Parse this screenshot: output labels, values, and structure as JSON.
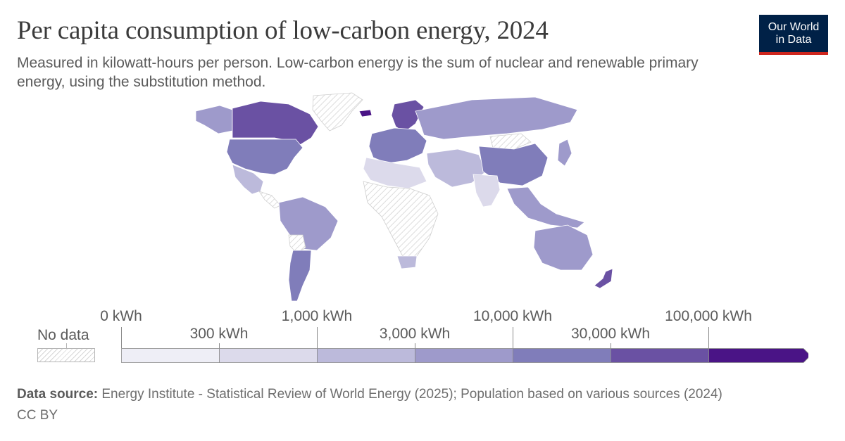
{
  "title": "Per capita consumption of low-carbon energy, 2024",
  "subtitle": "Measured in kilowatt-hours per person. Low-carbon energy is the sum of nuclear and renewable primary energy, using the substitution method.",
  "logo": {
    "line1": "Our World",
    "line2": "in Data",
    "bg_color": "#002147",
    "accent_color": "#ce261e"
  },
  "legend": {
    "no_data_label": "No data",
    "bins": [
      {
        "label": "0 kWh",
        "color": "#eeeef6"
      },
      {
        "label": "300 kWh",
        "color": "#dcdaeb"
      },
      {
        "label": "1,000 kWh",
        "color": "#bcbadb"
      },
      {
        "label": "3,000 kWh",
        "color": "#9e9acb"
      },
      {
        "label": "10,000 kWh",
        "color": "#807dba"
      },
      {
        "label": "30,000 kWh",
        "color": "#6a51a3"
      },
      {
        "label": "100,000 kWh",
        "color": "#4a1486"
      }
    ]
  },
  "footer": {
    "source_label": "Data source:",
    "source_text": " Energy Institute - Statistical Review of World Energy (2025); Population based on various sources (2024)",
    "license": "CC BY"
  }
}
